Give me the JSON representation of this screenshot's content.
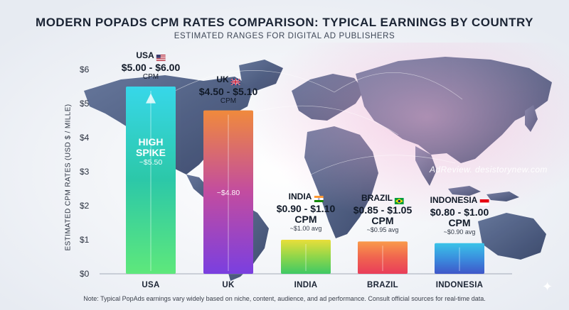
{
  "chart_data": {
    "type": "bar",
    "title": "MODERN POPADS CPM RATES COMPARISON: TYPICAL EARNINGS BY COUNTRY",
    "subtitle": "ESTIMATED RANGES FOR DIGITAL AD PUBLISHERS",
    "ylabel": "ESTIMATED CPM RATES (USD $ / MILLE)",
    "xlabel": "",
    "ylim": [
      0,
      6
    ],
    "yticks": [
      "$0",
      "$1",
      "$2",
      "$3",
      "$4",
      "$5",
      "$6"
    ],
    "yticks_values": [
      0,
      1,
      2,
      3,
      4,
      5,
      6
    ],
    "categories": [
      "USA",
      "UK",
      "INDIA",
      "BRAZIL",
      "INDONESIA"
    ],
    "values": [
      5.5,
      4.8,
      1.0,
      0.95,
      0.9
    ],
    "bars": [
      {
        "category": "USA",
        "value": 5.5,
        "country_label": "USA",
        "range": "$5.00 - $6.00",
        "unit": "CPM",
        "inside_title": "HIGH SPIKE",
        "inside_value": "~$5.50",
        "colors": [
          "#37d7e9",
          "#2cc8a8",
          "#5ee87b"
        ]
      },
      {
        "category": "UK",
        "value": 4.8,
        "country_label": "UK",
        "range": "$4.50 - $5.10",
        "unit": "CPM",
        "inside_value": "~$4.80",
        "colors": [
          "#f08a3c",
          "#c24ca0",
          "#7a3fe0"
        ]
      },
      {
        "category": "INDIA",
        "value": 1.0,
        "country_label": "INDIA",
        "range": "$0.90 - $1.10",
        "unit": "CPM",
        "avg": "~$1.00 avg",
        "colors": [
          "#e9de3a",
          "#8fd64a",
          "#3ec965"
        ]
      },
      {
        "category": "BRAZIL",
        "value": 0.95,
        "country_label": "BRAZIL",
        "range": "$0.85 - $1.05",
        "unit": "CPM",
        "avg": "~$0.95 avg",
        "colors": [
          "#f99a4a",
          "#f0644f",
          "#e93d5a"
        ]
      },
      {
        "category": "INDONESIA",
        "value": 0.9,
        "country_label": "INDONESIA",
        "range": "$0.80 - $1.00",
        "unit": "CPM",
        "avg": "~$0.90 avg",
        "colors": [
          "#3bc3e8",
          "#3a8ede",
          "#3f56c9"
        ]
      }
    ],
    "grid": false,
    "legend": "none"
  },
  "watermark": "AdReview. desistorynew.com",
  "note": "Note:  Typical PopAds earnings vary widely based on niche, content, audience, and ad performance. Consult official sources for real-time data.",
  "colors": {
    "background": "#eef1f6",
    "map": "#3c4e75",
    "title": "#1b2434"
  }
}
